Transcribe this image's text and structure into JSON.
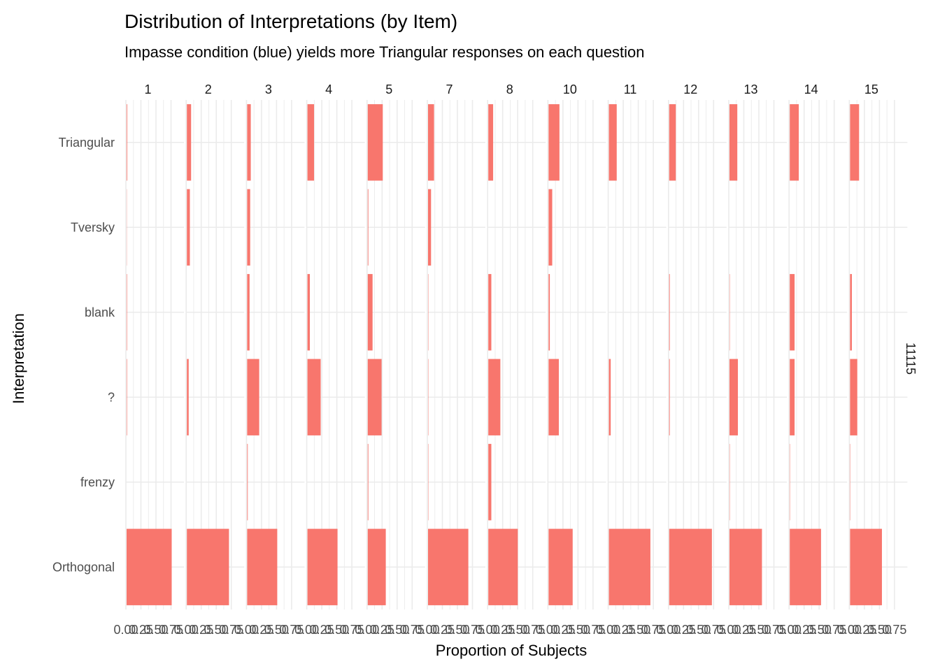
{
  "chart_data": {
    "type": "bar",
    "orientation": "horizontal",
    "title": "Distribution of Interpretations (by Item)",
    "subtitle": "Impasse condition (blue) yields more Triangular responses on each question",
    "xlabel": "Proportion of Subjects",
    "ylabel": "Interpretation",
    "row_strip_label": "11115",
    "bar_color": "#F8766D",
    "grid_color": "#EBEBEB",
    "xlim": [
      0,
      0.8
    ],
    "x_ticks": [
      "0.00",
      "0.25",
      "0.50",
      "0.75"
    ],
    "categories": [
      "Triangular",
      "Tversky",
      "blank",
      "?",
      "frenzy",
      "Orthogonal"
    ],
    "panels": [
      {
        "label": "1",
        "values": [
          0.01,
          0.003,
          0.007,
          0.007,
          0.0,
          0.75
        ]
      },
      {
        "label": "2",
        "values": [
          0.07,
          0.05,
          0.0,
          0.03,
          0.0,
          0.7
        ]
      },
      {
        "label": "3",
        "values": [
          0.06,
          0.05,
          0.04,
          0.2,
          0.01,
          0.5
        ]
      },
      {
        "label": "4",
        "values": [
          0.11,
          0.0,
          0.04,
          0.22,
          0.0,
          0.5
        ]
      },
      {
        "label": "5",
        "values": [
          0.25,
          0.01,
          0.08,
          0.23,
          0.01,
          0.3
        ]
      },
      {
        "label": "7",
        "values": [
          0.1,
          0.05,
          0.005,
          0.005,
          0.005,
          0.67
        ]
      },
      {
        "label": "8",
        "values": [
          0.08,
          0.0,
          0.05,
          0.2,
          0.05,
          0.49
        ]
      },
      {
        "label": "10",
        "values": [
          0.18,
          0.06,
          0.02,
          0.17,
          0.0,
          0.4
        ]
      },
      {
        "label": "11",
        "values": [
          0.13,
          0.0,
          0.0,
          0.03,
          0.0,
          0.69
        ]
      },
      {
        "label": "12",
        "values": [
          0.11,
          0.0,
          0.01,
          0.01,
          0.0,
          0.71
        ]
      },
      {
        "label": "13",
        "values": [
          0.13,
          0.0,
          0.005,
          0.14,
          0.005,
          0.54
        ]
      },
      {
        "label": "14",
        "values": [
          0.15,
          0.0,
          0.08,
          0.08,
          0.005,
          0.52
        ]
      },
      {
        "label": "15",
        "values": [
          0.15,
          0.0,
          0.03,
          0.12,
          0.005,
          0.53
        ]
      }
    ],
    "grid": true,
    "legend": "none"
  }
}
